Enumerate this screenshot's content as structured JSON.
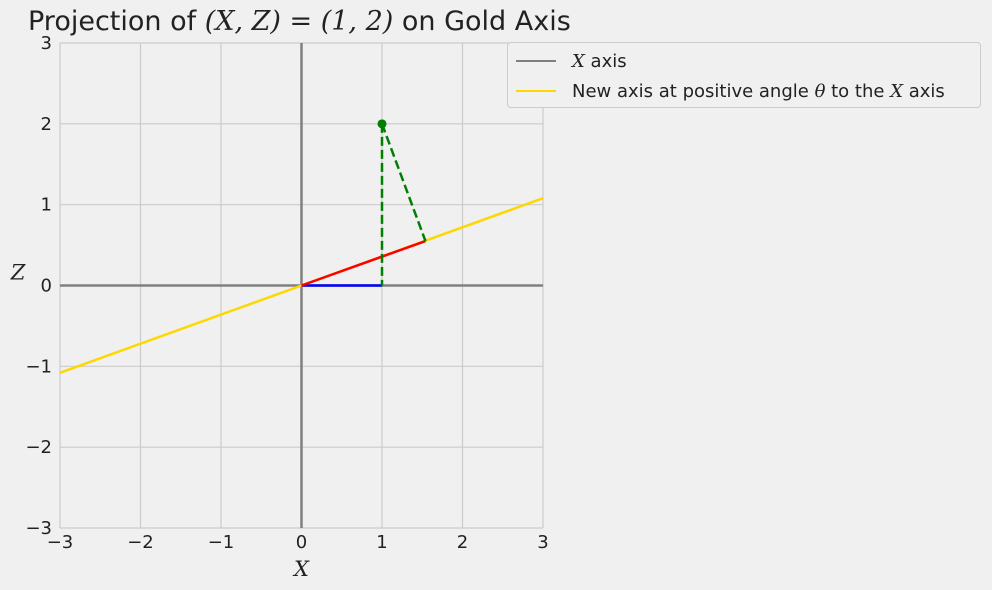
{
  "chart_data": {
    "type": "line",
    "title": "Projection of (X, Z) = (1, 2) on Gold Axis",
    "xlabel": "X",
    "ylabel": "Z",
    "xlim": [
      -3,
      3
    ],
    "ylim": [
      -3,
      3
    ],
    "xticks": [
      -3,
      -2,
      -1,
      0,
      1,
      2,
      3
    ],
    "yticks": [
      -3,
      -2,
      -1,
      0,
      1,
      2,
      3
    ],
    "xtick_labels": [
      "−3",
      "−2",
      "−1",
      "0",
      "1",
      "2",
      "3"
    ],
    "ytick_labels": [
      "−3",
      "−2",
      "−1",
      "0",
      "1",
      "2",
      "3"
    ],
    "grid": true,
    "legend_position": "outside top-right",
    "series": [
      {
        "name": "X axis",
        "color": "#808080",
        "x": [
          -3,
          3
        ],
        "y": [
          0,
          0
        ],
        "style": "solid"
      },
      {
        "name": "New axis at positive angle θ to the X axis",
        "color": "#ffd700",
        "x": [
          -3,
          3
        ],
        "y": [
          -1.08,
          1.08
        ],
        "style": "solid"
      },
      {
        "color": "#808080",
        "x": [
          0,
          0
        ],
        "y": [
          -3,
          3
        ],
        "style": "solid"
      },
      {
        "color": "#0000ff",
        "x": [
          0,
          1
        ],
        "y": [
          0,
          0
        ],
        "style": "solid"
      },
      {
        "color": "#ff0000",
        "x": [
          0,
          1.54
        ],
        "y": [
          0,
          0.55
        ],
        "style": "solid"
      },
      {
        "color": "#008000",
        "x": [
          1,
          1
        ],
        "y": [
          2,
          0
        ],
        "style": "dashed"
      },
      {
        "color": "#008000",
        "x": [
          1,
          1.54
        ],
        "y": [
          2,
          0.55
        ],
        "style": "dashed"
      }
    ],
    "points": [
      {
        "x": 1,
        "y": 2,
        "color": "#008000"
      }
    ]
  },
  "title_parts": {
    "prefix": "Projection of ",
    "math": "(X, Z) = (1, 2)",
    "suffix": " on Gold Axis"
  },
  "legend": {
    "item1": {
      "math": "X",
      "text": " axis",
      "color": "#808080"
    },
    "item2": {
      "pre": "New axis at positive angle ",
      "math1": "θ",
      "mid": " to the ",
      "math2": "X",
      "post": " axis",
      "color": "#ffd700"
    }
  }
}
